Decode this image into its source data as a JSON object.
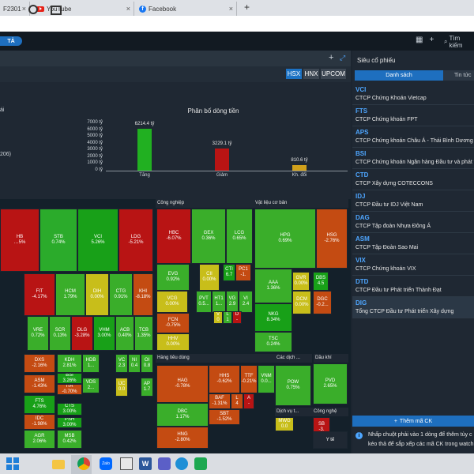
{
  "browser": {
    "tabs": [
      {
        "label": "F2301"
      },
      {
        "label": "YouTube"
      },
      {
        "label": "Facebook"
      }
    ],
    "new_tab": "+",
    "close_glyph": "×"
  },
  "toolbar": {
    "pill": "TẢ",
    "grid_icon": "grid-icon",
    "add_icon": "+",
    "search_placeholder": "Tìm kiếm"
  },
  "main": {
    "expand_icon": "+",
    "fullscreen_icon": "expand-icon",
    "exchanges": [
      "HSX",
      "HNX",
      "UPCOM"
    ],
    "partial_left_1": "ái",
    "partial_left_2": "206)"
  },
  "chart_data": {
    "type": "bar",
    "title": "Phân bố dòng tiền",
    "categories": [
      "Tăng",
      "Giảm",
      "Kh. đổi"
    ],
    "values": [
      6214.4,
      3229.1,
      810.6
    ],
    "value_labels": [
      "6214.4 tỷ",
      "3229.1 tỷ",
      "810.6 tỷ"
    ],
    "colors": [
      "#21b021",
      "#b81414",
      "#d0a01b"
    ],
    "yticks": [
      "7000 tỷ",
      "6000 tỷ",
      "5000 tỷ",
      "4000 tỷ",
      "3000 tỷ",
      "2000 tỷ",
      "1000 tỷ",
      "0 tỷ"
    ],
    "ylim": [
      0,
      7000
    ],
    "grid": false
  },
  "treemap": {
    "sectors": [
      "Công nghiệp",
      "Vật liệu cơ bản",
      "Hàng tiêu dùng",
      "Các dịch ...",
      "Dầu khí",
      "Dịch vụ t...",
      "Công nghệ"
    ],
    "cells": [
      {
        "code": "HB",
        "change": "…5%",
        "color": "#b81414"
      },
      {
        "code": "STB",
        "change": "0.74%",
        "color": "#2bab2b"
      },
      {
        "code": "VCI",
        "change": "5.26%",
        "color": "#18a018"
      },
      {
        "code": "LDG",
        "change": "-5.21%",
        "color": "#b81414"
      },
      {
        "code": "FIT",
        "change": "-4.17%",
        "color": "#b81414"
      },
      {
        "code": "HCM",
        "change": "1.79%",
        "color": "#3aae2a"
      },
      {
        "code": "DIH",
        "change": "0.00%",
        "color": "#c8be1a"
      },
      {
        "code": "CTG",
        "change": "0.91%",
        "color": "#3aae2a"
      },
      {
        "code": "KHI",
        "change": "-8.18%",
        "color": "#c44b12"
      },
      {
        "code": "VRE",
        "change": "0.72%",
        "color": "#3aae2a"
      },
      {
        "code": "SCR",
        "change": "0.13%",
        "color": "#3aae2a"
      },
      {
        "code": "DLG",
        "change": "-3.28%",
        "color": "#b81414"
      },
      {
        "code": "VHM",
        "change": "3.00%",
        "color": "#18a018"
      },
      {
        "code": "ACB",
        "change": "0.40%",
        "color": "#3aae2a"
      },
      {
        "code": "TCB",
        "change": "1.35%",
        "color": "#3aae2a"
      },
      {
        "code": "DXS",
        "change": "-2.16%",
        "color": "#c44b12"
      },
      {
        "code": "KDH",
        "change": "2.81%",
        "color": "#3aae2a"
      },
      {
        "code": "HDB",
        "change": "1...",
        "color": "#3aae2a"
      },
      {
        "code": "VC",
        "change": "2.3",
        "color": "#3aae2a"
      },
      {
        "code": "NI",
        "change": "0.4",
        "color": "#3aae2a"
      },
      {
        "code": "OI",
        "change": "0.8",
        "color": "#3aae2a"
      },
      {
        "code": "ASM",
        "change": "-1.43%",
        "color": "#c44b12"
      },
      {
        "code": "BSI",
        "change": "3.26%",
        "color": "#18a018"
      },
      {
        "code": "ITA",
        "change": "-0.70%",
        "color": "#c44b12"
      },
      {
        "code": "VDS",
        "change": "2...",
        "color": "#3aae2a"
      },
      {
        "code": "IJC",
        "change": "0.0",
        "color": "#c8be1a"
      },
      {
        "code": "AP",
        "change": "1.7",
        "color": "#3aae2a"
      },
      {
        "code": "FTS",
        "change": "4.76%",
        "color": "#18a018"
      },
      {
        "code": "CTS",
        "change": "3.00%",
        "color": "#18a018"
      },
      {
        "code": "IDC",
        "change": "-1.98%",
        "color": "#c44b12"
      },
      {
        "code": "PSH",
        "change": "3.00%",
        "color": "#18a018"
      },
      {
        "code": "AGR",
        "change": "2.06%",
        "color": "#3aae2a"
      },
      {
        "code": "MSB",
        "change": "0.42%",
        "color": "#3aae2a"
      },
      {
        "code": "HBC",
        "change": "-6.07%",
        "color": "#b81414"
      },
      {
        "code": "GEX",
        "change": "0.36%",
        "color": "#3aae2a"
      },
      {
        "code": "LCG",
        "change": "0.65%",
        "color": "#3aae2a"
      },
      {
        "code": "EVG",
        "change": "0.92%",
        "color": "#3aae2a"
      },
      {
        "code": "CII",
        "change": "0.00%",
        "color": "#c8be1a"
      },
      {
        "code": "CTI",
        "change": "6.7",
        "color": "#18a018"
      },
      {
        "code": "PC1",
        "change": "-1.",
        "color": "#c44b12"
      },
      {
        "code": "VCG",
        "change": "0.00%",
        "color": "#c8be1a"
      },
      {
        "code": "PVT",
        "change": "0.5...",
        "color": "#3aae2a"
      },
      {
        "code": "HT1",
        "change": "1...",
        "color": "#3aae2a"
      },
      {
        "code": "VG",
        "change": "2.9",
        "color": "#3aae2a"
      },
      {
        "code": "VI",
        "change": "2.4",
        "color": "#3aae2a"
      },
      {
        "code": "FCN",
        "change": "-0.75%",
        "color": "#c44b12"
      },
      {
        "code": "HHV",
        "change": "0.00%",
        "color": "#c8be1a"
      },
      {
        "code": "V",
        "change": "0",
        "color": "#c8be1a"
      },
      {
        "code": "L",
        "change": "1",
        "color": "#3aae2a"
      },
      {
        "code": "D",
        "change": "-",
        "color": "#b81414"
      },
      {
        "code": "HPG",
        "change": "0.69%",
        "color": "#3aae2a"
      },
      {
        "code": "HSG",
        "change": "-2.76%",
        "color": "#c44b12"
      },
      {
        "code": "AAA",
        "change": "1.36%",
        "color": "#3aae2a"
      },
      {
        "code": "GVR",
        "change": "0.00%",
        "color": "#c8be1a"
      },
      {
        "code": "DBS",
        "change": "4.5",
        "color": "#18a018"
      },
      {
        "code": "NKG",
        "change": "8.34%",
        "color": "#18a018"
      },
      {
        "code": "DCM",
        "change": "0.00%",
        "color": "#c8be1a"
      },
      {
        "code": "DGC",
        "change": "-0.2...",
        "color": "#c44b12"
      },
      {
        "code": "TSC",
        "change": "0.24%",
        "color": "#3aae2a"
      },
      {
        "code": "HAG",
        "change": "-0.78%",
        "color": "#c44b12"
      },
      {
        "code": "HHS",
        "change": "-0.62%",
        "color": "#c44b12"
      },
      {
        "code": "TTF",
        "change": "-0.21%",
        "color": "#c44b12"
      },
      {
        "code": "VNM",
        "change": "0.0...",
        "color": "#3aae2a"
      },
      {
        "code": "DBC",
        "change": "1.17%",
        "color": "#3aae2a"
      },
      {
        "code": "BAF",
        "change": "-1.31%",
        "color": "#c44b12"
      },
      {
        "code": "L",
        "change": "4",
        "color": "#c44b12"
      },
      {
        "code": "A",
        "change": "-",
        "color": "#b81414"
      },
      {
        "code": "SBT",
        "change": "-1.52%",
        "color": "#c44b12"
      },
      {
        "code": "HNG",
        "change": "-2.80%",
        "color": "#c44b12"
      },
      {
        "code": "POW",
        "change": "0.75%",
        "color": "#3aae2a"
      },
      {
        "code": "PVD",
        "change": "2.65%",
        "color": "#3aae2a"
      },
      {
        "code": "MWG",
        "change": "0.0",
        "color": "#c8be1a"
      },
      {
        "code": "SB",
        "change": "-3.",
        "color": "#b81414"
      },
      {
        "code": "Y tế",
        "change": "",
        "color": "#1f2833"
      }
    ]
  },
  "watchlist": {
    "title": "Siêu cổ phiếu",
    "tabs": [
      "Danh sách",
      "Tin tức"
    ],
    "items": [
      {
        "code": "VCI",
        "name": "CTCP Chứng Khoán Vietcap"
      },
      {
        "code": "FTS",
        "name": "CTCP Chứng khoán FPT"
      },
      {
        "code": "APS",
        "name": "CTCP Chứng khoán Châu Á - Thái Bình Dương"
      },
      {
        "code": "BSI",
        "name": "CTCP Chứng khoán Ngân hàng Đầu tư và phát triển"
      },
      {
        "code": "CTD",
        "name": "CTCP Xây dựng COTECCONS"
      },
      {
        "code": "IDJ",
        "name": "CTCP Đầu tư IDJ Việt Nam"
      },
      {
        "code": "DAG",
        "name": "CTCP Tập đoàn Nhựa Đông Á"
      },
      {
        "code": "ASM",
        "name": "CTCP Tập Đoàn Sao Mai"
      },
      {
        "code": "VIX",
        "name": "CTCP Chứng khoán VIX"
      },
      {
        "code": "DTD",
        "name": "CTCP Đầu tư Phát triển Thành Đạt"
      },
      {
        "code": "DIG",
        "name": "Tổng CTCP Đầu tư Phát triển Xây dựng"
      }
    ],
    "add_label": "Thêm mã CK",
    "tip_line1": "Nhấp chuột phải vào 1 dòng để thêm tùy c",
    "tip_line2": "kéo thả để sắp xếp các mã CK trong watch"
  },
  "taskbar": {
    "icons": [
      "windows-icon",
      "search-icon",
      "task-view-icon",
      "file-explorer-icon",
      "chrome-icon",
      "zalo-icon",
      "mail-icon",
      "word-icon",
      "teams-icon",
      "edge-icon",
      "green-app-icon"
    ],
    "zalo_label": "Zalo"
  }
}
